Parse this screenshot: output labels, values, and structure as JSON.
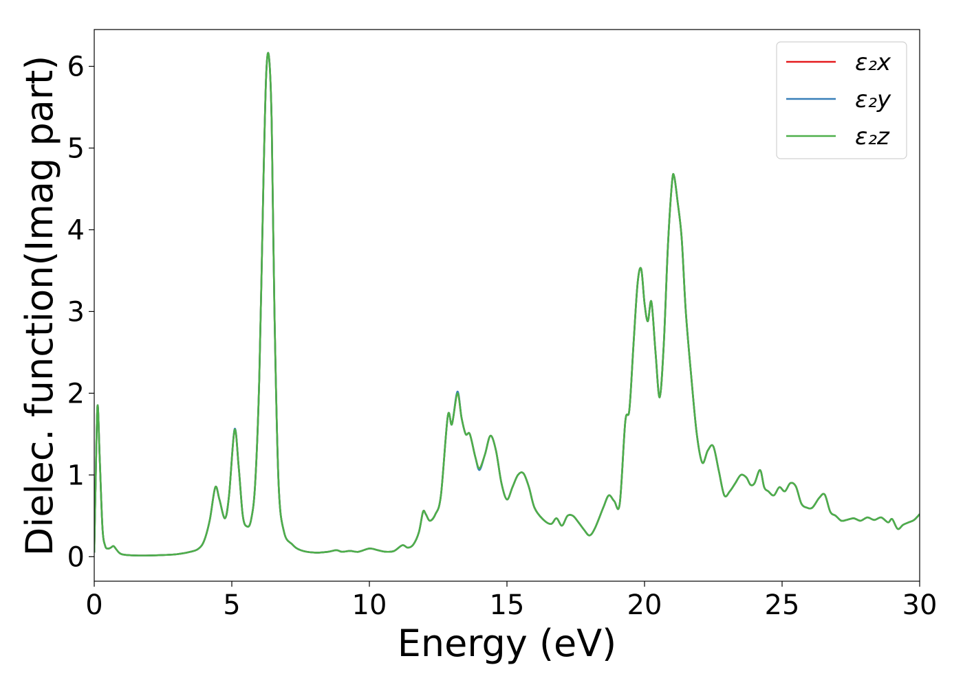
{
  "chart_data": {
    "type": "line",
    "title": "",
    "xlabel": "Energy (eV)",
    "ylabel": "Dielec. function(Imag part)",
    "xlim": [
      0,
      30
    ],
    "ylim": [
      -0.3,
      6.45
    ],
    "xticks": [
      0,
      5,
      10,
      15,
      20,
      25,
      30
    ],
    "yticks": [
      0,
      1,
      2,
      3,
      4,
      5,
      6
    ],
    "grid": false,
    "legend_position": "top-right",
    "x": [
      0.0,
      0.05,
      0.12,
      0.2,
      0.3,
      0.4,
      0.5,
      0.6,
      0.7,
      0.8,
      0.9,
      1.0,
      1.2,
      1.5,
      2.0,
      2.5,
      3.0,
      3.5,
      3.8,
      4.0,
      4.2,
      4.4,
      4.55,
      4.75,
      4.9,
      5.1,
      5.25,
      5.4,
      5.55,
      5.7,
      5.85,
      6.0,
      6.15,
      6.25,
      6.35,
      6.45,
      6.55,
      6.7,
      6.9,
      7.2,
      7.5,
      8.0,
      8.5,
      8.8,
      9.0,
      9.3,
      9.6,
      10.0,
      10.3,
      10.6,
      10.9,
      11.2,
      11.4,
      11.6,
      11.8,
      11.95,
      12.05,
      12.2,
      12.4,
      12.6,
      12.85,
      13.0,
      13.2,
      13.35,
      13.5,
      13.65,
      13.85,
      14.0,
      14.2,
      14.4,
      14.6,
      14.8,
      15.0,
      15.2,
      15.4,
      15.6,
      15.8,
      16.0,
      16.3,
      16.6,
      16.8,
      17.0,
      17.2,
      17.4,
      17.6,
      17.8,
      18.0,
      18.2,
      18.5,
      18.7,
      18.9,
      19.1,
      19.3,
      19.45,
      19.6,
      19.75,
      19.88,
      20.0,
      20.12,
      20.25,
      20.4,
      20.55,
      20.7,
      20.85,
      21.0,
      21.08,
      21.2,
      21.35,
      21.5,
      21.7,
      21.9,
      22.1,
      22.3,
      22.5,
      22.7,
      22.9,
      23.1,
      23.3,
      23.5,
      23.7,
      23.85,
      24.0,
      24.2,
      24.35,
      24.5,
      24.7,
      24.9,
      25.1,
      25.3,
      25.5,
      25.7,
      25.9,
      26.1,
      26.35,
      26.55,
      26.75,
      26.95,
      27.15,
      27.35,
      27.6,
      27.85,
      28.1,
      28.35,
      28.6,
      28.85,
      29.0,
      29.2,
      29.4,
      29.6,
      29.8,
      30.0
    ],
    "series": [
      {
        "name": "ε₂x",
        "color": "#e41a1c",
        "values": [
          0.05,
          0.9,
          1.85,
          1.2,
          0.35,
          0.13,
          0.1,
          0.11,
          0.13,
          0.09,
          0.05,
          0.03,
          0.02,
          0.015,
          0.015,
          0.02,
          0.03,
          0.06,
          0.1,
          0.2,
          0.45,
          0.85,
          0.7,
          0.47,
          0.75,
          1.55,
          1.1,
          0.5,
          0.37,
          0.45,
          0.9,
          2.2,
          4.6,
          5.9,
          6.12,
          5.3,
          3.0,
          0.9,
          0.3,
          0.15,
          0.08,
          0.05,
          0.06,
          0.08,
          0.06,
          0.07,
          0.06,
          0.1,
          0.08,
          0.06,
          0.07,
          0.14,
          0.11,
          0.15,
          0.3,
          0.55,
          0.52,
          0.44,
          0.52,
          0.75,
          1.72,
          1.62,
          2.0,
          1.7,
          1.5,
          1.5,
          1.22,
          1.08,
          1.25,
          1.48,
          1.3,
          0.9,
          0.7,
          0.85,
          1.0,
          1.02,
          0.85,
          0.6,
          0.46,
          0.4,
          0.47,
          0.38,
          0.5,
          0.5,
          0.42,
          0.33,
          0.26,
          0.35,
          0.6,
          0.75,
          0.68,
          0.65,
          1.65,
          1.8,
          2.6,
          3.35,
          3.52,
          3.1,
          2.88,
          3.12,
          2.5,
          1.95,
          2.6,
          3.8,
          4.58,
          4.65,
          4.35,
          3.9,
          3.0,
          2.2,
          1.5,
          1.15,
          1.3,
          1.35,
          1.05,
          0.75,
          0.8,
          0.9,
          1.0,
          0.97,
          0.88,
          0.9,
          1.06,
          0.85,
          0.8,
          0.75,
          0.85,
          0.8,
          0.9,
          0.86,
          0.65,
          0.6,
          0.6,
          0.72,
          0.76,
          0.55,
          0.5,
          0.44,
          0.45,
          0.47,
          0.44,
          0.48,
          0.45,
          0.48,
          0.42,
          0.46,
          0.34,
          0.39,
          0.42,
          0.45,
          0.52
        ]
      },
      {
        "name": "ε₂y",
        "color": "#377eb8",
        "values": [
          0.05,
          0.9,
          1.85,
          1.2,
          0.35,
          0.13,
          0.1,
          0.11,
          0.13,
          0.09,
          0.05,
          0.03,
          0.02,
          0.015,
          0.015,
          0.02,
          0.03,
          0.06,
          0.1,
          0.2,
          0.45,
          0.85,
          0.7,
          0.47,
          0.75,
          1.56,
          1.1,
          0.5,
          0.37,
          0.45,
          0.9,
          2.2,
          4.6,
          5.9,
          6.12,
          5.3,
          3.0,
          0.9,
          0.3,
          0.15,
          0.08,
          0.05,
          0.06,
          0.08,
          0.06,
          0.07,
          0.06,
          0.1,
          0.08,
          0.06,
          0.07,
          0.14,
          0.11,
          0.15,
          0.3,
          0.55,
          0.52,
          0.44,
          0.52,
          0.75,
          1.72,
          1.62,
          2.02,
          1.7,
          1.5,
          1.5,
          1.22,
          1.06,
          1.25,
          1.48,
          1.3,
          0.9,
          0.7,
          0.85,
          1.0,
          1.02,
          0.85,
          0.6,
          0.46,
          0.4,
          0.47,
          0.38,
          0.5,
          0.5,
          0.42,
          0.33,
          0.26,
          0.35,
          0.6,
          0.75,
          0.68,
          0.65,
          1.65,
          1.8,
          2.6,
          3.35,
          3.52,
          3.1,
          2.88,
          3.12,
          2.5,
          1.95,
          2.6,
          3.8,
          4.58,
          4.65,
          4.35,
          3.9,
          3.0,
          2.2,
          1.5,
          1.15,
          1.3,
          1.35,
          1.05,
          0.75,
          0.8,
          0.9,
          1.0,
          0.97,
          0.88,
          0.9,
          1.06,
          0.85,
          0.8,
          0.75,
          0.85,
          0.8,
          0.9,
          0.86,
          0.65,
          0.6,
          0.6,
          0.72,
          0.76,
          0.55,
          0.5,
          0.44,
          0.45,
          0.47,
          0.44,
          0.48,
          0.45,
          0.48,
          0.42,
          0.46,
          0.34,
          0.39,
          0.42,
          0.45,
          0.52
        ]
      },
      {
        "name": "ε₂z",
        "color": "#4daf4a",
        "values": [
          0.05,
          0.9,
          1.85,
          1.2,
          0.35,
          0.13,
          0.1,
          0.11,
          0.13,
          0.09,
          0.05,
          0.03,
          0.02,
          0.015,
          0.015,
          0.02,
          0.03,
          0.06,
          0.1,
          0.2,
          0.45,
          0.85,
          0.7,
          0.47,
          0.75,
          1.55,
          1.1,
          0.5,
          0.37,
          0.45,
          0.9,
          2.2,
          4.6,
          5.9,
          6.12,
          5.3,
          3.0,
          0.9,
          0.3,
          0.15,
          0.08,
          0.05,
          0.06,
          0.08,
          0.06,
          0.07,
          0.06,
          0.1,
          0.08,
          0.06,
          0.07,
          0.14,
          0.11,
          0.15,
          0.3,
          0.55,
          0.52,
          0.44,
          0.52,
          0.75,
          1.72,
          1.62,
          2.0,
          1.7,
          1.5,
          1.5,
          1.22,
          1.08,
          1.25,
          1.48,
          1.3,
          0.9,
          0.7,
          0.85,
          1.0,
          1.02,
          0.85,
          0.6,
          0.46,
          0.4,
          0.47,
          0.38,
          0.5,
          0.5,
          0.42,
          0.33,
          0.26,
          0.35,
          0.6,
          0.75,
          0.68,
          0.65,
          1.65,
          1.8,
          2.6,
          3.35,
          3.52,
          3.1,
          2.88,
          3.12,
          2.5,
          1.95,
          2.6,
          3.8,
          4.58,
          4.65,
          4.35,
          3.9,
          3.0,
          2.2,
          1.5,
          1.15,
          1.3,
          1.35,
          1.05,
          0.75,
          0.8,
          0.9,
          1.0,
          0.97,
          0.88,
          0.9,
          1.06,
          0.85,
          0.8,
          0.75,
          0.85,
          0.8,
          0.9,
          0.86,
          0.65,
          0.6,
          0.6,
          0.72,
          0.76,
          0.55,
          0.5,
          0.44,
          0.45,
          0.47,
          0.44,
          0.48,
          0.45,
          0.48,
          0.42,
          0.46,
          0.34,
          0.39,
          0.42,
          0.45,
          0.52
        ]
      }
    ]
  }
}
